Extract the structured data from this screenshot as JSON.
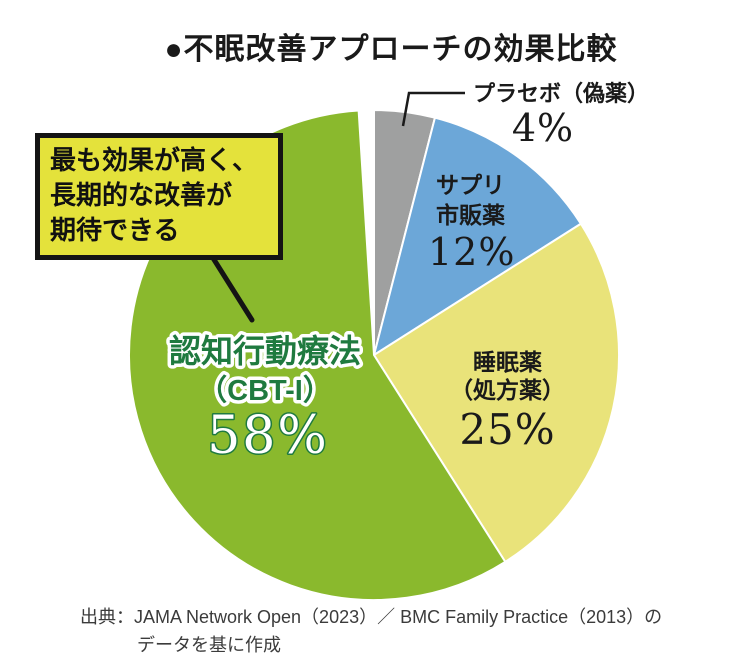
{
  "title": "●不眠改善アプローチの効果比較",
  "callout": {
    "line1": "最も効果が高く、",
    "line2": "長期的な改善が",
    "line3": "期待できる"
  },
  "chart_data": {
    "type": "pie",
    "title": "不眠改善アプローチの効果比較",
    "unit": "percent",
    "rotation": "first slice starts at 12 o'clock, drawn clockwise",
    "slices": [
      {
        "key": "placebo",
        "label": "プラセボ（偽薬）",
        "value": 4,
        "color": "#9fa0a0"
      },
      {
        "key": "otc-supplement",
        "label": "サプリ・市販薬",
        "value": 12,
        "color": "#6ca7d8"
      },
      {
        "key": "sleeping-pills",
        "label": "睡眠薬（処方薬）",
        "value": 25,
        "color": "#e9e37a"
      },
      {
        "key": "cbt-i",
        "label": "認知行動療法（CBT-I）",
        "value": 58,
        "color": "#8ab92d"
      }
    ],
    "annotation": "最も効果が高く、長期的な改善が期待できる（認知行動療法を指す）",
    "legend_position": "labels placed on/near slices, leader line for placebo"
  },
  "labels": {
    "placebo": {
      "name": "プラセボ（偽薬）",
      "pct": "4%"
    },
    "supplement": {
      "line1": "サプリ",
      "line2": "市販薬",
      "pct": "12%"
    },
    "sleeping": {
      "line1": "睡眠薬",
      "line2": "（処方薬）",
      "pct": "25%"
    },
    "cbt": {
      "name": "認知行動療法",
      "sub": "（CBT-I）",
      "pct": "58%"
    }
  },
  "source": {
    "line1": "出典：JAMA Network Open（2023）／ BMC Family Practice（2013）の",
    "line2": "データを基に作成"
  },
  "colors": {
    "cbt_text_green": "#1f7a3f",
    "callout_bg": "#e4e23b",
    "line_black": "#1a1a1a",
    "slice_separator": "#ffffff"
  }
}
